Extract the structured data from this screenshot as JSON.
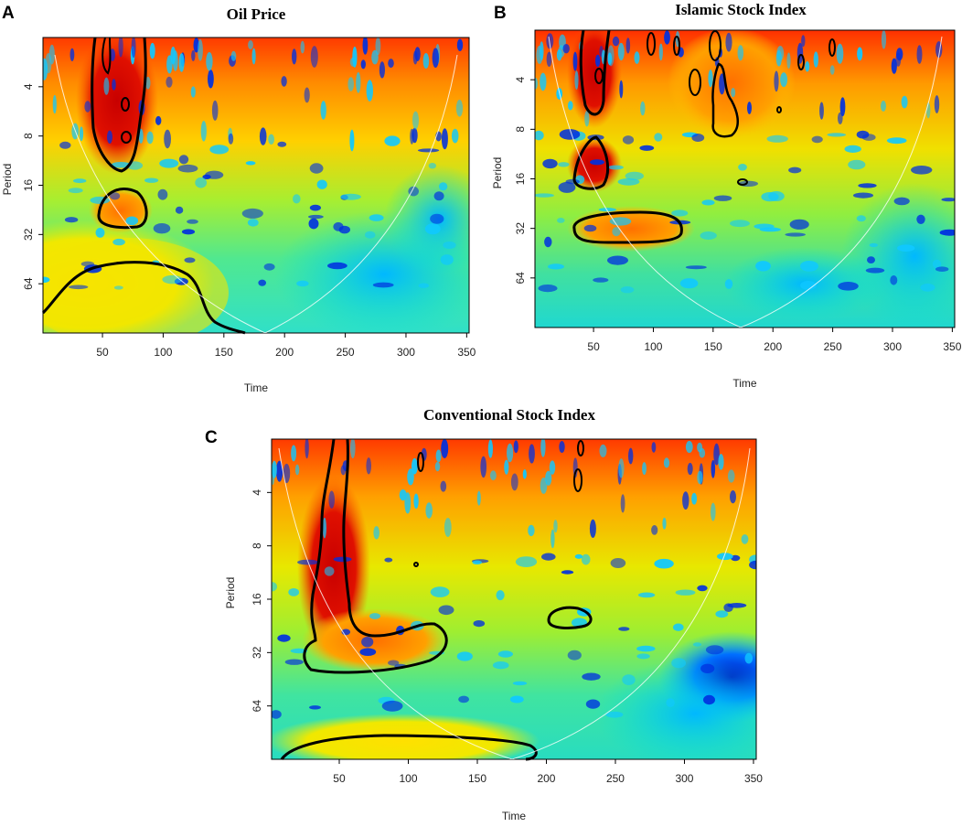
{
  "figure": {
    "panels": [
      {
        "label": "A",
        "title": "Oil Price"
      },
      {
        "label": "B",
        "title": "Islamic Stock Index"
      },
      {
        "label": "C",
        "title": "Conventional Stock Index"
      }
    ],
    "colors": {
      "background": "#ffffff",
      "colormap": [
        "#0000c8",
        "#00b4ff",
        "#00e6a0",
        "#b4f000",
        "#f0f000",
        "#ffb400",
        "#ff5000",
        "#c80000"
      ],
      "contour": "#000000",
      "cone_of_influence": "#ffffff"
    }
  },
  "chart_data": [
    {
      "type": "heatmap",
      "title": "Oil Price",
      "panel_label": "A",
      "xlabel": "Time",
      "ylabel": "Period",
      "x_ticks": [
        50,
        100,
        150,
        200,
        250,
        300,
        350
      ],
      "y_ticks": [
        4,
        8,
        16,
        32,
        64
      ],
      "xlim": [
        1,
        352
      ],
      "ylim": [
        2,
        128
      ],
      "y_scale": "log2",
      "significant_regions": [
        {
          "time": [
            45,
            90
          ],
          "period": [
            2,
            12
          ]
        },
        {
          "time": [
            55,
            85
          ],
          "period": [
            18,
            30
          ]
        },
        {
          "time": [
            1,
            165
          ],
          "period": [
            40,
            128
          ]
        }
      ]
    },
    {
      "type": "heatmap",
      "title": "Islamic Stock Index",
      "panel_label": "B",
      "xlabel": "Time",
      "ylabel": "Period",
      "x_ticks": [
        50,
        100,
        150,
        200,
        250,
        300,
        350
      ],
      "y_ticks": [
        4,
        8,
        16,
        32,
        64
      ],
      "xlim": [
        1,
        352
      ],
      "ylim": [
        2,
        128
      ],
      "y_scale": "log2",
      "significant_regions": [
        {
          "time": [
            40,
            60
          ],
          "period": [
            2,
            6
          ]
        },
        {
          "time": [
            30,
            60
          ],
          "period": [
            10,
            22
          ]
        },
        {
          "time": [
            30,
            125
          ],
          "period": [
            24,
            40
          ]
        },
        {
          "time": [
            125,
            185
          ],
          "period": [
            3,
            9
          ]
        }
      ]
    },
    {
      "type": "heatmap",
      "title": "Conventional Stock Index",
      "panel_label": "C",
      "xlabel": "Time",
      "ylabel": "Period",
      "x_ticks": [
        50,
        100,
        150,
        200,
        250,
        300,
        350
      ],
      "y_ticks": [
        4,
        8,
        16,
        32,
        64
      ],
      "xlim": [
        1,
        352
      ],
      "ylim": [
        2,
        128
      ],
      "y_scale": "log2",
      "significant_regions": [
        {
          "time": [
            25,
            125
          ],
          "period": [
            2,
            45
          ]
        },
        {
          "time": [
            200,
            230
          ],
          "period": [
            19,
            25
          ]
        },
        {
          "time": [
            5,
            190
          ],
          "period": [
            110,
            128
          ]
        }
      ]
    }
  ]
}
